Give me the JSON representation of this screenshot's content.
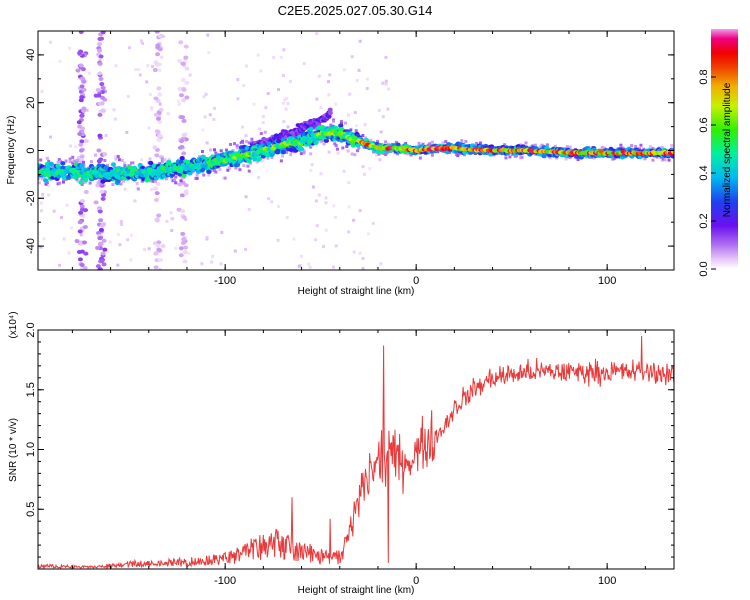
{
  "title": "C2E5.2025.027.05.30.G14",
  "colors": {
    "snr_line": "#e83a3a",
    "frame": "#000000",
    "background": "#ffffff"
  },
  "chart_data": [
    {
      "type": "heatmap",
      "name": "spectrogram",
      "xlabel": "Height of straight line (km)",
      "ylabel": "Frequency (Hz)",
      "xlim": [
        -198,
        135
      ],
      "ylim": [
        -50,
        50
      ],
      "xticks": [
        -100,
        0,
        100
      ],
      "yticks": [
        -40,
        -20,
        0,
        20,
        40
      ],
      "colorbar": {
        "label": "Normalized spectral amplitude",
        "range": [
          0,
          1
        ],
        "ticks": [
          "0.0",
          "0.2",
          "0.4",
          "0.6",
          "0.8"
        ],
        "colormap": [
          "#ffffff",
          "#e8c8f8",
          "#b070f0",
          "#7a1ef0",
          "#3a10e8",
          "#1e5cf0",
          "#00c8f0",
          "#00f0a0",
          "#40f000",
          "#c8f000",
          "#f0c800",
          "#f06400",
          "#f00000",
          "#f00060",
          "#f0a0f0"
        ]
      },
      "ridge": [
        [
          -198,
          -9
        ],
        [
          -180,
          -9
        ],
        [
          -160,
          -10
        ],
        [
          -140,
          -9
        ],
        [
          -120,
          -7
        ],
        [
          -100,
          -4
        ],
        [
          -80,
          0
        ],
        [
          -60,
          4
        ],
        [
          -45,
          8
        ],
        [
          -40,
          7
        ],
        [
          -30,
          4
        ],
        [
          -20,
          1
        ],
        [
          -10,
          1
        ],
        [
          0,
          0
        ],
        [
          10,
          1
        ],
        [
          20,
          1
        ],
        [
          40,
          0
        ],
        [
          60,
          0
        ],
        [
          80,
          -1
        ],
        [
          100,
          -1
        ],
        [
          120,
          -1
        ],
        [
          135,
          -1
        ]
      ],
      "upper_branch": [
        [
          -90,
          0
        ],
        [
          -70,
          6
        ],
        [
          -55,
          11
        ],
        [
          -45,
          15
        ]
      ],
      "vertical_streaks": [
        -175,
        -165,
        -135,
        -122
      ]
    },
    {
      "type": "line",
      "name": "snr",
      "xlabel": "Height of straight line (km)",
      "ylabel": "SNR (10 * v/v)",
      "y_multiplier": "(x10⁴)",
      "xlim": [
        -198,
        135
      ],
      "ylim": [
        0,
        2.0
      ],
      "xticks": [
        -100,
        0,
        100
      ],
      "yticks": [
        "0.5",
        "1.0",
        "1.5",
        "2.0"
      ],
      "series": [
        {
          "envelope": [
            [
              -198,
              0.03
            ],
            [
              -170,
              0.02
            ],
            [
              -150,
              0.05
            ],
            [
              -130,
              0.06
            ],
            [
              -110,
              0.08
            ],
            [
              -95,
              0.12
            ],
            [
              -85,
              0.22
            ],
            [
              -75,
              0.25
            ],
            [
              -65,
              0.2
            ],
            [
              -55,
              0.15
            ],
            [
              -45,
              0.1
            ],
            [
              -38,
              0.12
            ],
            [
              -33,
              0.4
            ],
            [
              -28,
              0.7
            ],
            [
              -22,
              0.85
            ],
            [
              -15,
              0.95
            ],
            [
              -5,
              0.9
            ],
            [
              5,
              1.05
            ],
            [
              10,
              1.1
            ],
            [
              15,
              1.2
            ],
            [
              20,
              1.35
            ],
            [
              30,
              1.5
            ],
            [
              40,
              1.6
            ],
            [
              60,
              1.65
            ],
            [
              80,
              1.65
            ],
            [
              100,
              1.65
            ],
            [
              120,
              1.65
            ],
            [
              135,
              1.63
            ]
          ],
          "spikes": [
            [
              -17,
              1.87
            ],
            [
              -65,
              0.6
            ],
            [
              -45,
              0.42
            ],
            [
              118,
              1.95
            ]
          ]
        }
      ]
    }
  ]
}
